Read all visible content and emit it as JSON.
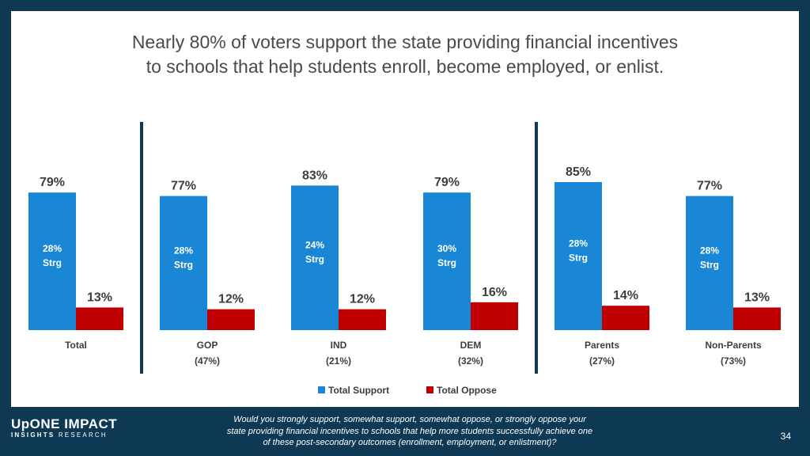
{
  "title_lines": [
    "Nearly 80% of voters support the state providing financial incentives",
    "to schools that help students enroll, become employed, or enlist."
  ],
  "chart_data": {
    "type": "bar",
    "title": "Nearly 80% of voters support the state providing financial incentives to schools that help students enroll, become employed, or enlist.",
    "categories": [
      {
        "label": "Total",
        "sub": ""
      },
      {
        "label": "GOP",
        "sub": "(47%)"
      },
      {
        "label": "IND",
        "sub": "(21%)"
      },
      {
        "label": "DEM",
        "sub": "(32%)"
      },
      {
        "label": "Parents",
        "sub": "(27%)"
      },
      {
        "label": "Non-Parents",
        "sub": "(73%)"
      }
    ],
    "series": [
      {
        "name": "Total Support",
        "color": "#1a87d6",
        "values": [
          79,
          77,
          83,
          79,
          85,
          77
        ],
        "value_labels": [
          "79%",
          "77%",
          "83%",
          "79%",
          "85%",
          "77%"
        ],
        "inner_labels": [
          [
            "28%",
            "Strg"
          ],
          [
            "28%",
            "Strg"
          ],
          [
            "24%",
            "Strg"
          ],
          [
            "30%",
            "Strg"
          ],
          [
            "28%",
            "Strg"
          ],
          [
            "28%",
            "Strg"
          ]
        ]
      },
      {
        "name": "Total Oppose",
        "color": "#c00000",
        "values": [
          13,
          12,
          12,
          16,
          14,
          13
        ],
        "value_labels": [
          "13%",
          "12%",
          "12%",
          "16%",
          "14%",
          "13%"
        ]
      }
    ],
    "ylim": [
      0,
      100
    ],
    "grid": false,
    "legend": "bottom",
    "group_dividers_after": [
      0,
      3
    ],
    "divider_color": "#0e3954"
  },
  "footer": {
    "logo": {
      "word1": "UpONE",
      "word2": "IMPACT",
      "word3": "INSIGHTS",
      "word4": "RESEARCH"
    },
    "question_lines": [
      "Would you strongly support, somewhat support, somewhat oppose, or strongly oppose your",
      "state providing financial incentives to schools that help more students successfully achieve one",
      "of these post-secondary outcomes (enrollment, employment, or enlistment)?"
    ],
    "page_number": "34"
  }
}
